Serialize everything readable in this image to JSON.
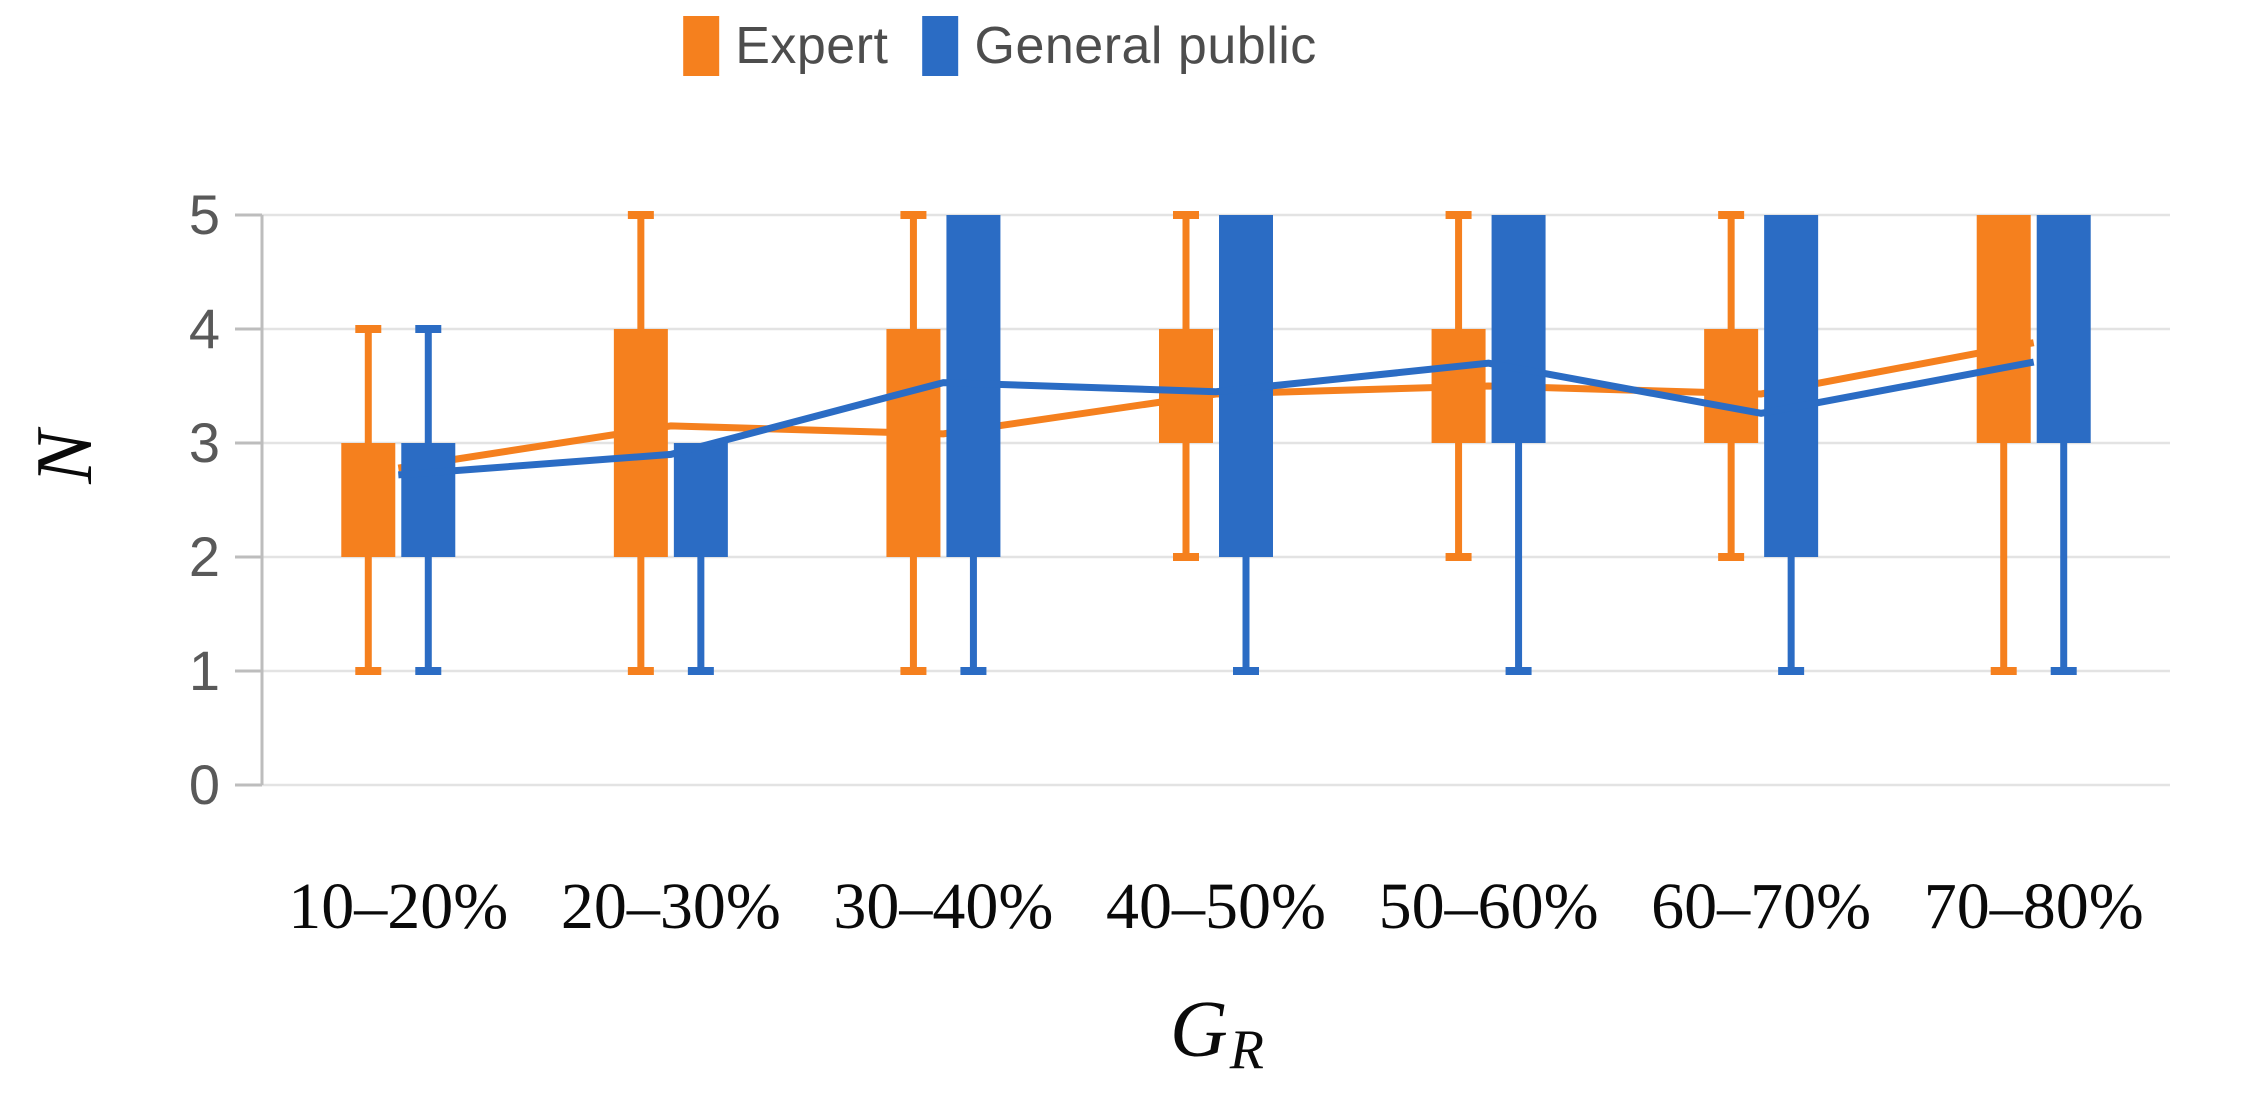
{
  "legend": {
    "items": [
      {
        "label": "Expert",
        "color": "#F5801E"
      },
      {
        "label": "General public",
        "color": "#2B6CC4"
      }
    ]
  },
  "axes": {
    "y_title": "N",
    "x_title_main": "G",
    "x_title_sub": "R"
  },
  "colors": {
    "grid": "#E3E3E3",
    "axis": "#BDBDBD",
    "tick_text": "#595959",
    "category_text": "#0a0a0a"
  },
  "chart_data": {
    "type": "boxplot",
    "title": "",
    "xlabel": "G_R",
    "ylabel": "N",
    "categories": [
      "10–20%",
      "20–30%",
      "30–40%",
      "40–50%",
      "50–60%",
      "60–70%",
      "70–80%"
    ],
    "ylim": [
      0,
      5
    ],
    "y_ticks": [
      0,
      1,
      2,
      3,
      4,
      5
    ],
    "grid": "horizontal",
    "legend_position": "top-center",
    "series": [
      {
        "name": "Expert",
        "color": "#F5801E",
        "boxes": [
          {
            "whisker_low": 1,
            "box_low": 2,
            "box_high": 3,
            "whisker_high": 4
          },
          {
            "whisker_low": 1,
            "box_low": 2,
            "box_high": 4,
            "whisker_high": 5
          },
          {
            "whisker_low": 1,
            "box_low": 2,
            "box_high": 4,
            "whisker_high": 5
          },
          {
            "whisker_low": 2,
            "box_low": 3,
            "box_high": 4,
            "whisker_high": 5
          },
          {
            "whisker_low": 2,
            "box_low": 3,
            "box_high": 4,
            "whisker_high": 5
          },
          {
            "whisker_low": 2,
            "box_low": 3,
            "box_high": 4,
            "whisker_high": 5
          },
          {
            "whisker_low": 1,
            "box_low": 3,
            "box_high": 5,
            "whisker_high": 5
          }
        ],
        "mean_line": [
          2.78,
          3.15,
          3.08,
          3.43,
          3.5,
          3.43,
          3.88
        ]
      },
      {
        "name": "General public",
        "color": "#2B6CC4",
        "boxes": [
          {
            "whisker_low": 1,
            "box_low": 2,
            "box_high": 3,
            "whisker_high": 4
          },
          {
            "whisker_low": 1,
            "box_low": 2,
            "box_high": 3,
            "whisker_high": 3
          },
          {
            "whisker_low": 1,
            "box_low": 2,
            "box_high": 5,
            "whisker_high": 5
          },
          {
            "whisker_low": 1,
            "box_low": 2,
            "box_high": 5,
            "whisker_high": 5
          },
          {
            "whisker_low": 1,
            "box_low": 3,
            "box_high": 5,
            "whisker_high": 5
          },
          {
            "whisker_low": 1,
            "box_low": 2,
            "box_high": 5,
            "whisker_high": 5
          },
          {
            "whisker_low": 1,
            "box_low": 3,
            "box_high": 5,
            "whisker_high": 5
          }
        ],
        "mean_line": [
          2.72,
          2.9,
          3.53,
          3.45,
          3.7,
          3.26,
          3.71
        ]
      }
    ]
  }
}
